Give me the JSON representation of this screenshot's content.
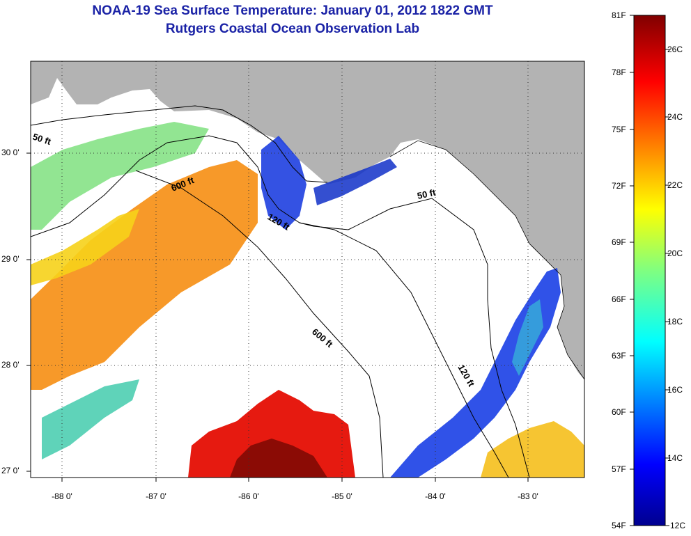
{
  "title": {
    "line1": "NOAA-19 Sea Surface Temperature:  January 01, 2012 1822 GMT",
    "line2": "Rutgers Coastal Ocean Observation Lab"
  },
  "map": {
    "lat_ticks": [
      "30 0'",
      "29 0'",
      "28 0'",
      "27 0'"
    ],
    "lon_ticks": [
      "-88 0'",
      "-87 0'",
      "-86 0'",
      "-85 0'",
      "-84 0'",
      "-83 0'"
    ],
    "contours": [
      "50 ft",
      "600 ft",
      "120 ft",
      "50 ft",
      "600 ft",
      "120 ft"
    ],
    "colors": {
      "land": "#b3b3b3",
      "ocean_cloud": "#ffffff",
      "contour": "#000000"
    }
  },
  "colorbar": {
    "f_labels": [
      "81F",
      "78F",
      "75F",
      "72F",
      "69F",
      "66F",
      "63F",
      "60F",
      "57F",
      "54F"
    ],
    "c_labels": [
      "26C",
      "24C",
      "22C",
      "20C",
      "18C",
      "16C",
      "14C",
      "12C"
    ]
  }
}
